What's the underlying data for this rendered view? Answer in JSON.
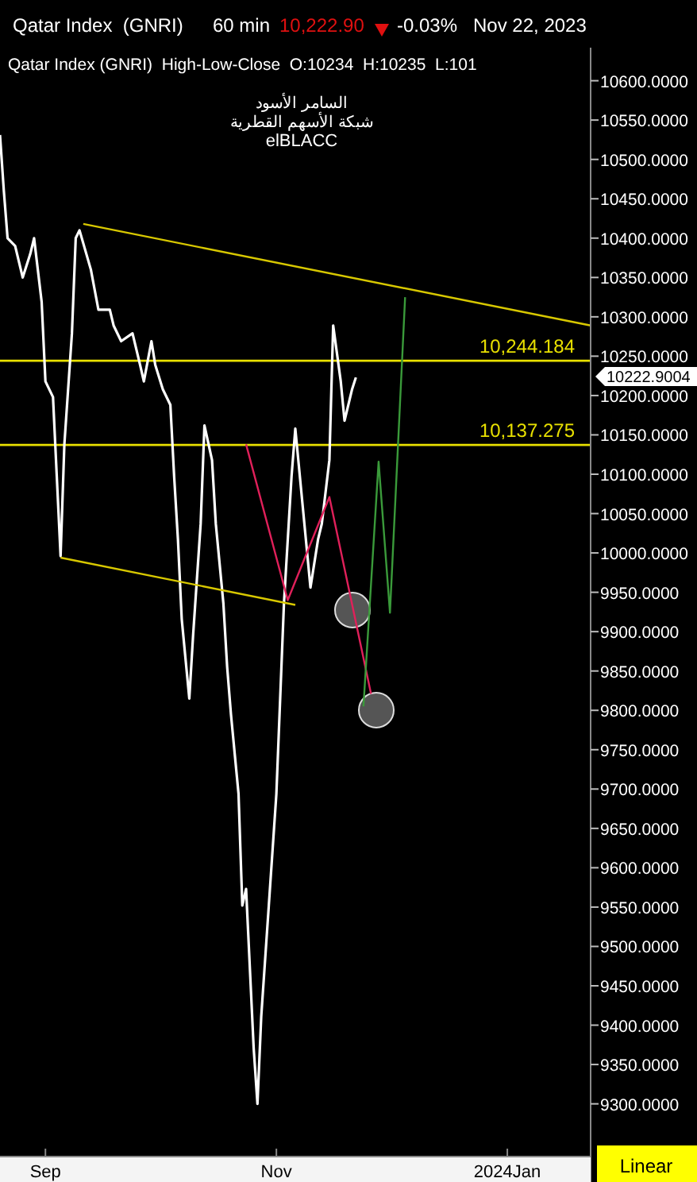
{
  "chart_data": {
    "type": "line",
    "title": "Qatar Index  (GNRI)",
    "subtitle": "Qatar Index (GNRI)  High-Low-Close  O:10234  H:10235  L:101",
    "annotations": [
      "60 min",
      "10,222.90",
      "-0.03%",
      "Nov 22, 2023",
      "السامر الأسود",
      "شبكة الأسهم القطرية",
      "elBLACC",
      "Linear",
      "10222.9004"
    ],
    "xlim": [
      "2023-08-20",
      "2024-01-23"
    ],
    "xticks": [
      {
        "value": "2023-09-01",
        "label": "Sep"
      },
      {
        "value": "2023-11-01",
        "label": "Nov"
      },
      {
        "value": "2024-01-01",
        "label": "2024Jan"
      }
    ],
    "ylim": [
      9233,
      10642
    ],
    "yticks": [
      {
        "value": 9300,
        "label": "9300.0000"
      },
      {
        "value": 9350,
        "label": "9350.0000"
      },
      {
        "value": 9400,
        "label": "9400.0000"
      },
      {
        "value": 9450,
        "label": "9450.0000"
      },
      {
        "value": 9500,
        "label": "9500.0000"
      },
      {
        "value": 9550,
        "label": "9550.0000"
      },
      {
        "value": 9600,
        "label": "9600.0000"
      },
      {
        "value": 9650,
        "label": "9650.0000"
      },
      {
        "value": 9700,
        "label": "9700.0000"
      },
      {
        "value": 9750,
        "label": "9750.0000"
      },
      {
        "value": 9800,
        "label": "9800.0000"
      },
      {
        "value": 9850,
        "label": "9850.0000"
      },
      {
        "value": 9900,
        "label": "9900.0000"
      },
      {
        "value": 9950,
        "label": "9950.0000"
      },
      {
        "value": 10000,
        "label": "10000.0000"
      },
      {
        "value": 10050,
        "label": "10050.0000"
      },
      {
        "value": 10100,
        "label": "10100.0000"
      },
      {
        "value": 10150,
        "label": "10150.0000"
      },
      {
        "value": 10200,
        "label": "10200.0000"
      },
      {
        "value": 10250,
        "label": "10250.0000"
      },
      {
        "value": 10300,
        "label": "10300.0000"
      },
      {
        "value": 10350,
        "label": "10350.0000"
      },
      {
        "value": 10400,
        "label": "10400.0000"
      },
      {
        "value": 10450,
        "label": "10450.0000"
      },
      {
        "value": 10500,
        "label": "10500.0000"
      },
      {
        "value": 10550,
        "label": "10550.0000"
      },
      {
        "value": 10600,
        "label": "10600.0000"
      }
    ],
    "grid": false,
    "marker": "none",
    "line_style": "solid",
    "ref_lines": [
      {
        "axis": "y",
        "value": 10244.184,
        "label": "10,244.184",
        "color": "#e8e000"
      },
      {
        "axis": "y",
        "value": 10137.275,
        "label": "10,137.275",
        "color": "#e8e000"
      }
    ],
    "series": [
      {
        "color": "#ffffff",
        "x": [
          "2023-08-20",
          "2023-08-21",
          "2023-08-22",
          "2023-08-24",
          "2023-08-26",
          "2023-08-28",
          "2023-08-29",
          "2023-08-31",
          "2023-09-01",
          "2023-09-03",
          "2023-09-04",
          "2023-09-05",
          "2023-09-06",
          "2023-09-08",
          "2023-09-09",
          "2023-09-10",
          "2023-09-13",
          "2023-09-15",
          "2023-09-18",
          "2023-09-19",
          "2023-09-21",
          "2023-09-24",
          "2023-09-26",
          "2023-09-27",
          "2023-09-29",
          "2023-09-30",
          "2023-10-02",
          "2023-10-04",
          "2023-10-05",
          "2023-10-06",
          "2023-10-07",
          "2023-10-09",
          "2023-10-10",
          "2023-10-12",
          "2023-10-13",
          "2023-10-15",
          "2023-10-16",
          "2023-10-18",
          "2023-10-19",
          "2023-10-20",
          "2023-10-22",
          "2023-10-23",
          "2023-10-24",
          "2023-10-26",
          "2023-10-27",
          "2023-10-28",
          "2023-10-30",
          "2023-11-01",
          "2023-11-02",
          "2023-11-03",
          "2023-11-05",
          "2023-11-06",
          "2023-11-08",
          "2023-11-10",
          "2023-11-12",
          "2023-11-13",
          "2023-11-15",
          "2023-11-16",
          "2023-11-18",
          "2023-11-19",
          "2023-11-21",
          "2023-11-22"
        ],
        "values": [
          10531,
          10461,
          10400,
          10390,
          10350,
          10380,
          10400,
          10319,
          10218,
          10198,
          10097,
          9996,
          10138,
          10279,
          10400,
          10410,
          10360,
          10309,
          10309,
          10289,
          10269,
          10279,
          10239,
          10218,
          10269,
          10239,
          10208,
          10188,
          10097,
          10017,
          9916,
          9815,
          9895,
          10037,
          10162,
          10118,
          10037,
          9936,
          9855,
          9795,
          9694,
          9552,
          9573,
          9371,
          9300,
          9411,
          9552,
          9694,
          9815,
          9936,
          10097,
          10158,
          10057,
          9956,
          10017,
          10037,
          10118,
          10289,
          10218,
          10168,
          10208,
          10223
        ]
      },
      {
        "color": "#d8c800",
        "x": [
          "2023-09-11",
          "2024-01-23"
        ],
        "values": [
          10418,
          10289
        ]
      },
      {
        "color": "#d8c800",
        "x": [
          "2023-09-05",
          "2023-11-06"
        ],
        "values": [
          9994,
          9934
        ]
      },
      {
        "color": "#e0205a",
        "x": [
          "2023-10-24",
          "2023-11-04",
          "2023-11-15",
          "2023-11-26"
        ],
        "values": [
          10138,
          9940,
          10071,
          9821
        ]
      },
      {
        "color": "#3a9a3a",
        "x": [
          "2023-11-24",
          "2023-11-28",
          "2023-12-01",
          "2023-12-05"
        ],
        "values": [
          9805,
          10116,
          9924,
          10325
        ]
      }
    ]
  }
}
